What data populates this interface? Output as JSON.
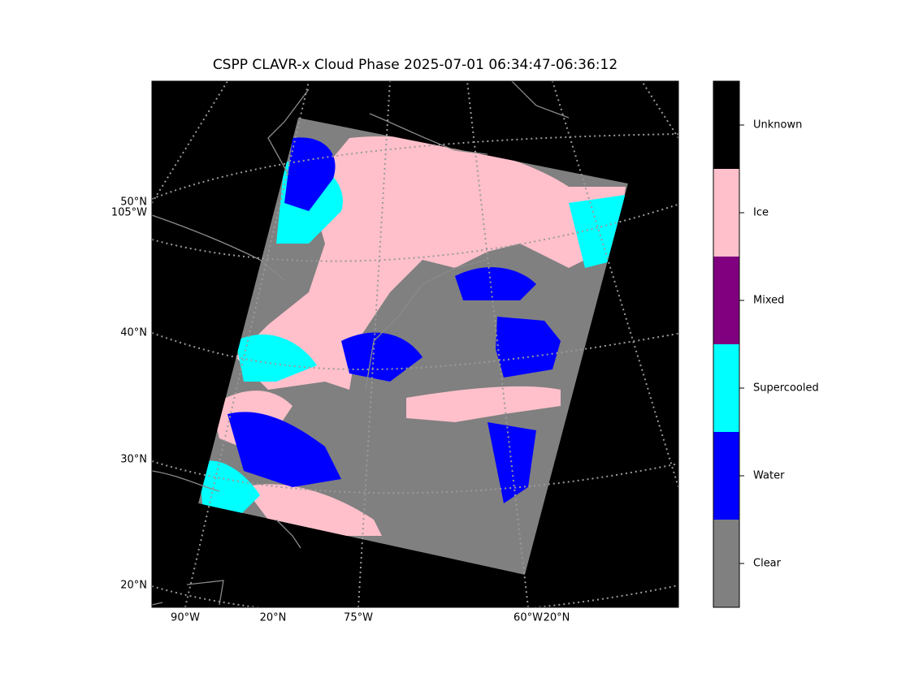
{
  "title": "CSPP CLAVR-x Cloud Phase 2025-07-01 06:34:47-06:36:12",
  "map": {
    "left_labels": [
      "50°N",
      "105°W",
      "40°N",
      "30°N",
      "20°N"
    ],
    "bottom_labels": [
      "90°W",
      "20°N",
      "75°W",
      "60°W",
      "20°N"
    ]
  },
  "colorbar": {
    "classes": [
      {
        "label": "Unknown",
        "color": "#000000"
      },
      {
        "label": "Ice",
        "color": "#ffc0cb"
      },
      {
        "label": "Mixed",
        "color": "#800080"
      },
      {
        "label": "Supercooled",
        "color": "#00ffff"
      },
      {
        "label": "Water",
        "color": "#0000ff"
      },
      {
        "label": "Clear",
        "color": "#808080"
      }
    ]
  }
}
